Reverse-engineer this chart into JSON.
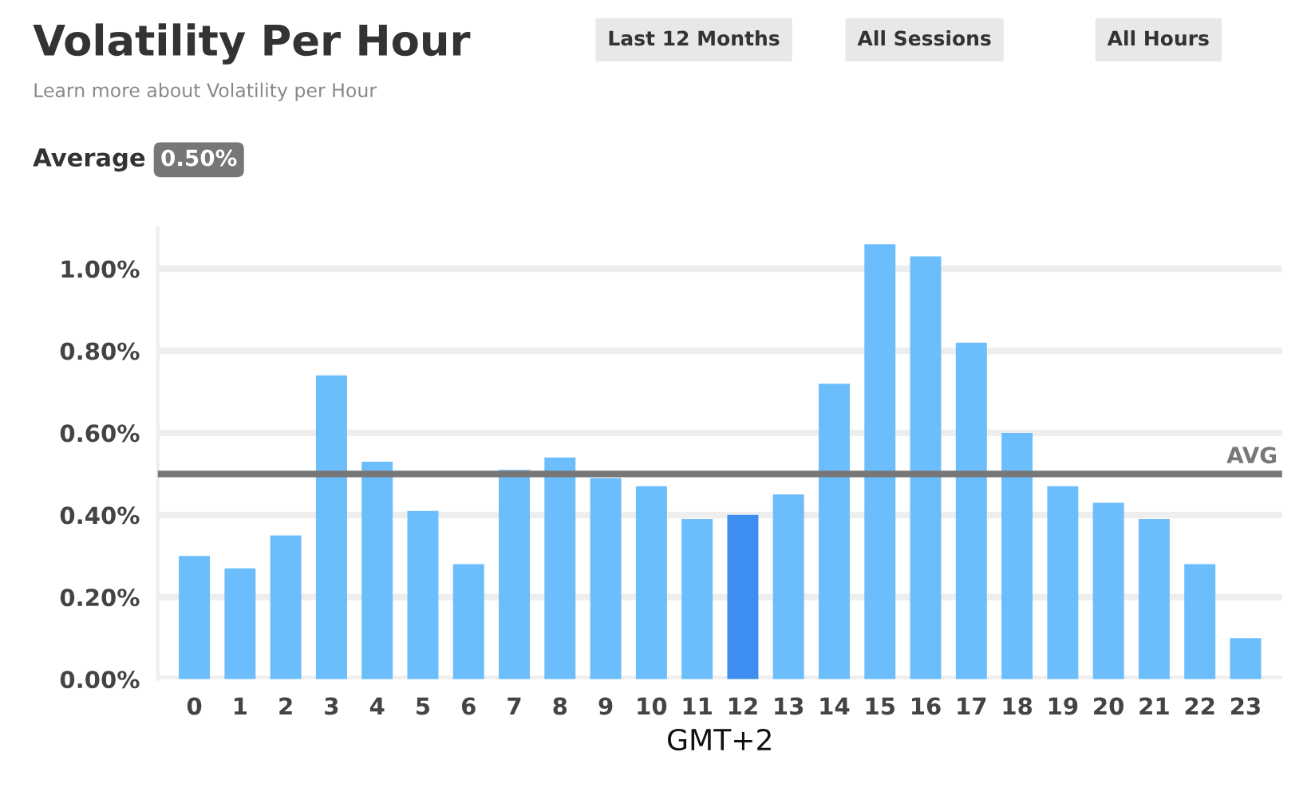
{
  "chart_data": {
    "type": "bar",
    "title": "Volatility Per Hour",
    "subtitle": "Learn more about Volatility per Hour",
    "xlabel": "GMT+2",
    "categories": [
      "0",
      "1",
      "2",
      "3",
      "4",
      "5",
      "6",
      "7",
      "8",
      "9",
      "10",
      "11",
      "12",
      "13",
      "14",
      "15",
      "16",
      "17",
      "18",
      "19",
      "20",
      "21",
      "22",
      "23"
    ],
    "values": [
      0.3,
      0.27,
      0.35,
      0.74,
      0.53,
      0.41,
      0.28,
      0.51,
      0.54,
      0.49,
      0.47,
      0.39,
      0.4,
      0.45,
      0.72,
      1.06,
      1.03,
      0.82,
      0.6,
      0.47,
      0.43,
      0.39,
      0.28,
      0.1
    ],
    "colors": [
      "#6bbdfb",
      "#6bbdfb",
      "#6bbdfb",
      "#6bbdfb",
      "#6bbdfb",
      "#6bbdfb",
      "#6bbdfb",
      "#6bbdfb",
      "#6bbdfb",
      "#6bbdfb",
      "#6bbdfb",
      "#6bbdfb",
      "#3d8ef0",
      "#6bbdfb",
      "#6bbdfb",
      "#6bbdfb",
      "#6bbdfb",
      "#6bbdfb",
      "#6bbdfb",
      "#6bbdfb",
      "#6bbdfb",
      "#6bbdfb",
      "#6bbdfb",
      "#6bbdfb"
    ],
    "ylim": [
      0,
      1.1
    ],
    "yticks": [
      {
        "value": 0,
        "label": "0.00%"
      },
      {
        "value": 0.2,
        "label": "0.20%"
      },
      {
        "value": 0.4,
        "label": "0.40%"
      },
      {
        "value": 0.6,
        "label": "0.60%"
      },
      {
        "value": 0.8,
        "label": "0.80%"
      },
      {
        "value": 1.0,
        "label": "1.00%"
      }
    ],
    "grid": "y",
    "ref_lines": [
      {
        "axis": "y",
        "value": 0.5,
        "label": "AVG",
        "color": "#777777"
      }
    ],
    "annotations": [
      "Last 12 Months",
      "All Sessions",
      "All Hours",
      "Average",
      "0.50%"
    ]
  }
}
